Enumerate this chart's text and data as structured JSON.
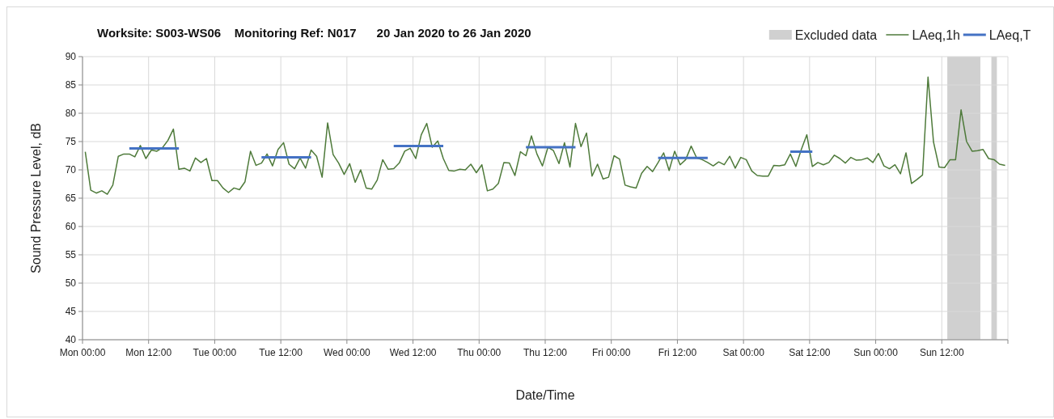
{
  "chart_data": {
    "type": "line",
    "title": "Worksite: S003-WS06    Monitoring Ref: N017      20 Jan 2020 to 26 Jan 2020",
    "xlabel": "Date/Time",
    "ylabel": "Sound Pressure Level, dB",
    "x": [
      "2020-01-20T00:30",
      "2020-01-20T01:30",
      "2020-01-20T02:30",
      "2020-01-20T03:30",
      "2020-01-20T04:30",
      "2020-01-20T05:30",
      "2020-01-20T06:30",
      "2020-01-20T07:30",
      "2020-01-20T08:30",
      "2020-01-20T09:30",
      "2020-01-20T10:30",
      "2020-01-20T11:30",
      "2020-01-20T12:30",
      "2020-01-20T13:30",
      "2020-01-20T14:30",
      "2020-01-20T15:30",
      "2020-01-20T16:30",
      "2020-01-20T17:30",
      "2020-01-20T18:30",
      "2020-01-20T19:30",
      "2020-01-20T20:30",
      "2020-01-20T21:30",
      "2020-01-20T22:30",
      "2020-01-20T23:30",
      "2020-01-21T00:30",
      "2020-01-21T01:30",
      "2020-01-21T02:30",
      "2020-01-21T03:30",
      "2020-01-21T04:30",
      "2020-01-21T05:30",
      "2020-01-21T06:30",
      "2020-01-21T07:30",
      "2020-01-21T08:30",
      "2020-01-21T09:30",
      "2020-01-21T10:30",
      "2020-01-21T11:30",
      "2020-01-21T12:30",
      "2020-01-21T13:30",
      "2020-01-21T14:30",
      "2020-01-21T15:30",
      "2020-01-21T16:30",
      "2020-01-21T17:30",
      "2020-01-21T18:30",
      "2020-01-21T19:30",
      "2020-01-21T20:30",
      "2020-01-21T21:30",
      "2020-01-21T22:30",
      "2020-01-21T23:30",
      "2020-01-22T00:30",
      "2020-01-22T01:30",
      "2020-01-22T02:30",
      "2020-01-22T03:30",
      "2020-01-22T04:30",
      "2020-01-22T05:30",
      "2020-01-22T06:30",
      "2020-01-22T07:30",
      "2020-01-22T08:30",
      "2020-01-22T09:30",
      "2020-01-22T10:30",
      "2020-01-22T11:30",
      "2020-01-22T12:30",
      "2020-01-22T13:30",
      "2020-01-22T14:30",
      "2020-01-22T15:30",
      "2020-01-22T16:30",
      "2020-01-22T17:30",
      "2020-01-22T18:30",
      "2020-01-22T19:30",
      "2020-01-22T20:30",
      "2020-01-22T21:30",
      "2020-01-22T22:30",
      "2020-01-22T23:30",
      "2020-01-23T00:30",
      "2020-01-23T01:30",
      "2020-01-23T02:30",
      "2020-01-23T03:30",
      "2020-01-23T04:30",
      "2020-01-23T05:30",
      "2020-01-23T06:30",
      "2020-01-23T07:30",
      "2020-01-23T08:30",
      "2020-01-23T09:30",
      "2020-01-23T10:30",
      "2020-01-23T11:30",
      "2020-01-23T12:30",
      "2020-01-23T13:30",
      "2020-01-23T14:30",
      "2020-01-23T15:30",
      "2020-01-23T16:30",
      "2020-01-23T17:30",
      "2020-01-23T18:30",
      "2020-01-23T19:30",
      "2020-01-23T20:30",
      "2020-01-23T21:30",
      "2020-01-23T22:30",
      "2020-01-23T23:30",
      "2020-01-24T00:30",
      "2020-01-24T01:30",
      "2020-01-24T02:30",
      "2020-01-24T03:30",
      "2020-01-24T04:30",
      "2020-01-24T05:30",
      "2020-01-24T06:30",
      "2020-01-24T07:30",
      "2020-01-24T08:30",
      "2020-01-24T09:30",
      "2020-01-24T10:30",
      "2020-01-24T11:30",
      "2020-01-24T12:30",
      "2020-01-24T13:30",
      "2020-01-24T14:30",
      "2020-01-24T15:30",
      "2020-01-24T16:30",
      "2020-01-24T17:30",
      "2020-01-24T18:30",
      "2020-01-24T19:30",
      "2020-01-24T20:30",
      "2020-01-24T21:30",
      "2020-01-24T22:30",
      "2020-01-24T23:30",
      "2020-01-25T00:30",
      "2020-01-25T01:30",
      "2020-01-25T02:30",
      "2020-01-25T03:30",
      "2020-01-25T04:30",
      "2020-01-25T05:30",
      "2020-01-25T06:30",
      "2020-01-25T07:30",
      "2020-01-25T08:30",
      "2020-01-25T09:30",
      "2020-01-25T10:30",
      "2020-01-25T11:30",
      "2020-01-25T12:30",
      "2020-01-25T13:30",
      "2020-01-25T14:30",
      "2020-01-25T15:30",
      "2020-01-25T16:30",
      "2020-01-25T17:30",
      "2020-01-25T18:30",
      "2020-01-25T19:30",
      "2020-01-25T20:30",
      "2020-01-25T21:30",
      "2020-01-25T22:30",
      "2020-01-25T23:30",
      "2020-01-26T00:30",
      "2020-01-26T01:30",
      "2020-01-26T02:30",
      "2020-01-26T03:30",
      "2020-01-26T04:30",
      "2020-01-26T05:30",
      "2020-01-26T06:30",
      "2020-01-26T07:30",
      "2020-01-26T08:30",
      "2020-01-26T09:30",
      "2020-01-26T10:30",
      "2020-01-26T11:30",
      "2020-01-26T12:30",
      "2020-01-26T13:30",
      "2020-01-26T14:30",
      "2020-01-26T15:30",
      "2020-01-26T16:30",
      "2020-01-26T17:30",
      "2020-01-26T18:30",
      "2020-01-26T19:30",
      "2020-01-26T20:30",
      "2020-01-26T21:30",
      "2020-01-26T22:30",
      "2020-01-26T23:30"
    ],
    "series": [
      {
        "name": "LAeq,1h",
        "color": "#4e7a3a",
        "values": [
          73.2,
          66.4,
          65.9,
          66.3,
          65.7,
          67.3,
          72.4,
          72.8,
          72.8,
          72.3,
          74.3,
          72,
          73.5,
          73.3,
          73.9,
          75.2,
          77.2,
          70.1,
          70.3,
          69.8,
          72.1,
          71.3,
          72,
          68.1,
          68.1,
          66.8,
          66,
          66.8,
          66.5,
          67.9,
          73.3,
          70.8,
          71.2,
          72.8,
          70.7,
          73.6,
          74.8,
          71,
          70.2,
          72.1,
          70.3,
          73.5,
          72.4,
          68.7,
          78.3,
          72.7,
          71.2,
          69.2,
          71.1,
          67.8,
          70,
          66.8,
          66.6,
          68.2,
          71.8,
          70.1,
          70.2,
          71.2,
          73.3,
          73.8,
          72,
          76.2,
          78.2,
          74,
          75.1,
          72,
          69.9,
          69.8,
          70.1,
          70,
          71,
          69.5,
          70.9,
          66.3,
          66.6,
          67.6,
          71.3,
          71.2,
          69,
          73.2,
          72.5,
          76,
          72.8,
          70.7,
          74,
          73.4,
          71.1,
          74.8,
          70.5,
          78.2,
          74.1,
          76.5,
          68.9,
          71,
          68.4,
          68.7,
          72.5,
          71.9,
          67.3,
          67,
          66.8,
          69.4,
          70.6,
          69.7,
          71.3,
          73,
          69.9,
          73.3,
          70.9,
          71.8,
          74.2,
          72.1,
          71.8,
          71.3,
          70.7,
          71.4,
          70.9,
          72.4,
          70.3,
          72.2,
          71.8,
          69.8,
          69,
          68.9,
          68.9,
          70.8,
          70.7,
          70.9,
          72.8,
          70.6,
          73.6,
          76.2,
          70.6,
          71.3,
          70.9,
          71.3,
          72.6,
          72,
          71.2,
          72.2,
          71.7,
          71.8,
          72.1,
          71.3,
          72.9,
          70.7,
          70.2,
          70.9,
          69.3,
          73,
          67.6,
          68.3,
          69.1,
          86.4,
          74.9,
          70.5,
          70.4,
          71.8,
          71.8,
          80.6,
          75,
          73.3,
          73.4,
          73.6,
          72,
          71.8,
          71,
          70.8
        ]
      },
      {
        "name": "LAeq,T",
        "color": "#4472c4",
        "x": [
          "2020-01-20T08:30",
          "2020-01-20T17:30",
          "2020-01-21T00:00",
          "2020-01-21T08:30",
          "2020-01-21T17:30",
          "2020-01-22T00:00",
          "2020-01-22T08:30",
          "2020-01-22T17:30",
          "2020-01-23T00:00",
          "2020-01-23T08:30",
          "2020-01-23T17:30",
          "2020-01-24T00:00",
          "2020-01-24T08:30",
          "2020-01-24T17:30",
          "2020-01-25T00:00",
          "2020-01-25T08:30",
          "2020-01-25T12:30"
        ],
        "values": [
          73.8,
          73.8,
          null,
          72.2,
          72.2,
          null,
          74.2,
          74.2,
          null,
          74.0,
          74.0,
          null,
          72.1,
          72.1,
          null,
          73.2,
          73.2
        ]
      }
    ],
    "bands": [
      {
        "axis": "x",
        "from": "2020-01-26T13:00",
        "to": "2020-01-26T19:00",
        "label": "Excluded data",
        "color": "#d0d0d0"
      },
      {
        "axis": "x",
        "from": "2020-01-26T21:00",
        "to": "2020-01-26T22:00",
        "color": "#d0d0d0"
      }
    ],
    "xlim": [
      "2020-01-20T00:00",
      "2020-01-27T00:00"
    ],
    "xticks": [
      {
        "value": "2020-01-20T00:00",
        "label": "Mon 00:00"
      },
      {
        "value": "2020-01-20T12:00",
        "label": "Mon 12:00"
      },
      {
        "value": "2020-01-21T00:00",
        "label": "Tue 00:00"
      },
      {
        "value": "2020-01-21T12:00",
        "label": "Tue 12:00"
      },
      {
        "value": "2020-01-22T00:00",
        "label": "Wed 00:00"
      },
      {
        "value": "2020-01-22T12:00",
        "label": "Wed 12:00"
      },
      {
        "value": "2020-01-23T00:00",
        "label": "Thu 00:00"
      },
      {
        "value": "2020-01-23T12:00",
        "label": "Thu 12:00"
      },
      {
        "value": "2020-01-24T00:00",
        "label": "Fri 00:00"
      },
      {
        "value": "2020-01-24T12:00",
        "label": "Fri 12:00"
      },
      {
        "value": "2020-01-25T00:00",
        "label": "Sat 00:00"
      },
      {
        "value": "2020-01-25T12:00",
        "label": "Sat 12:00"
      },
      {
        "value": "2020-01-26T00:00",
        "label": "Sun 00:00"
      },
      {
        "value": "2020-01-26T12:00",
        "label": "Sun 12:00"
      },
      {
        "value": "2020-01-27T00:00",
        "label": null
      }
    ],
    "ylim": [
      40,
      90
    ],
    "yticks": [
      40,
      45,
      50,
      55,
      60,
      65,
      70,
      75,
      80,
      85,
      90
    ],
    "grid": true,
    "legend": "top right",
    "marker": "none",
    "line_style": "solid"
  }
}
